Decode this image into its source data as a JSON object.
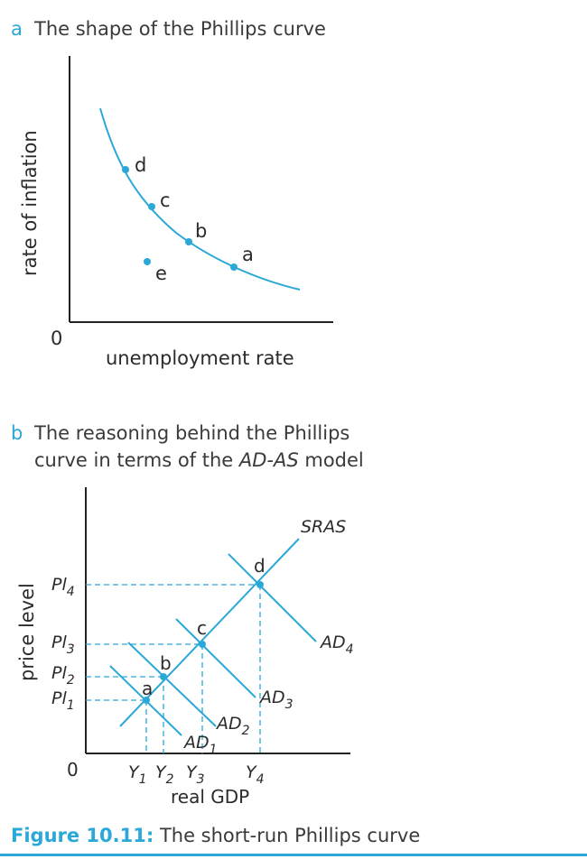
{
  "panel_a": {
    "letter": "a",
    "title": "The shape of the Phillips curve",
    "ylabel": "rate of inflation",
    "xlabel": "unemployment rate",
    "origin": "0",
    "points": {
      "a": "a",
      "b": "b",
      "c": "c",
      "d": "d",
      "e": "e"
    }
  },
  "panel_b": {
    "letter": "b",
    "title_line1": "The reasoning behind the Phillips",
    "title_line2_pre": "curve in terms of the ",
    "title_line2_ital": "AD-AS",
    "title_line2_post": " model",
    "ylabel": "price level",
    "xlabel": "real GDP",
    "origin": "0",
    "sras": "SRAS",
    "ad_base": "AD",
    "pl_base": "Pl",
    "y_base": "Y",
    "subs": {
      "s1": "1",
      "s2": "2",
      "s3": "3",
      "s4": "4"
    },
    "points": {
      "a": "a",
      "b": "b",
      "c": "c",
      "d": "d"
    }
  },
  "caption": {
    "label": "Figure 10.11:",
    "text": " The short-run Phillips curve"
  },
  "colors": {
    "accent": "#2aa8d8",
    "axis": "#222222",
    "text": "#2b2b2b"
  }
}
